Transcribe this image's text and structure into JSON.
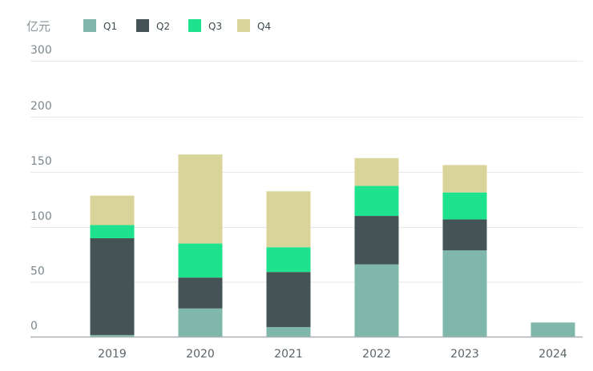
{
  "chart_data": {
    "type": "bar",
    "stacked": true,
    "unit_label": "亿元",
    "categories": [
      "2019",
      "2020",
      "2021",
      "2022",
      "2023",
      "2024"
    ],
    "series": [
      {
        "name": "Q1",
        "color": "#7fb8aa",
        "values": [
          1.5,
          25.7,
          8.7,
          66,
          78.7,
          12.9
        ]
      },
      {
        "name": "Q2",
        "color": "#465356",
        "values": [
          88.3,
          28.2,
          50.3,
          44.1,
          28.2,
          0
        ]
      },
      {
        "name": "Q3",
        "color": "#1fe28e",
        "values": [
          12,
          31.1,
          22.6,
          27.2,
          24.5,
          0
        ]
      },
      {
        "name": "Q4",
        "color": "#d8d49a",
        "values": [
          26.7,
          80.8,
          50.8,
          25.2,
          24.8,
          0
        ]
      }
    ],
    "yticks": [
      0,
      50,
      100,
      150,
      200,
      300
    ],
    "ytick_labels": [
      "0",
      "50",
      "100",
      "150",
      "200",
      "300"
    ],
    "ylim": [
      0,
      300
    ],
    "grid": true,
    "legend_position": "top-left",
    "title": "",
    "xlabel": "",
    "ylabel": "亿元"
  }
}
